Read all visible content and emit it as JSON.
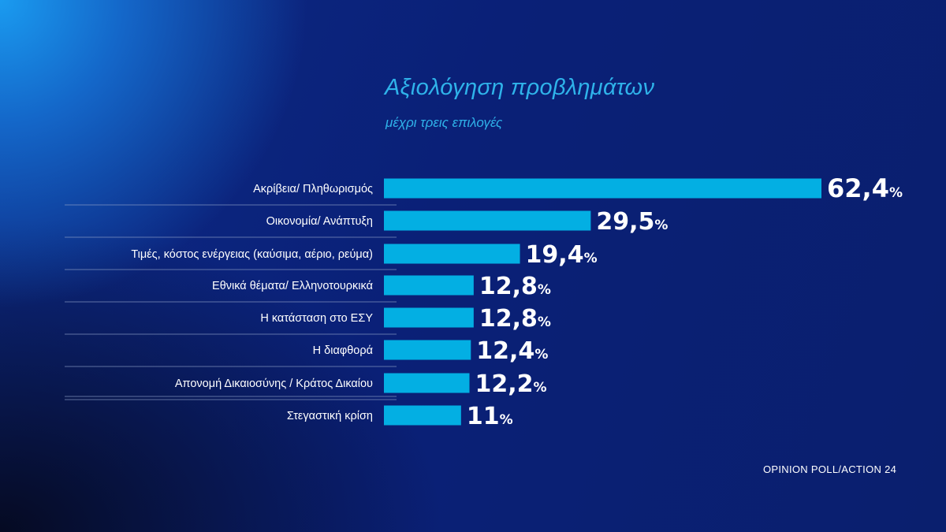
{
  "header": {
    "title": "Αξιολόγηση προβλημάτων",
    "subtitle": "μέχρι τρεις επιλογές"
  },
  "source": "OPINION POLL/ACTION 24",
  "colors": {
    "bar": "#03afe3",
    "title": "#2fb3ea",
    "divider": "#8fa0c8"
  },
  "chart_data": {
    "type": "bar",
    "orientation": "horizontal",
    "categories": [
      "Ακρίβεια/ Πληθωρισμός",
      "Οικονομία/ Ανάπτυξη",
      "Τιμές, κόστος ενέργειας (καύσιμα, αέριο, ρεύμα)",
      "Εθνικά θέματα/ Ελληνοτουρκικά",
      "Η κατάσταση στο ΕΣΥ",
      "Η διαφθορά",
      "Απονομή Δικαιοσύνης / Κράτος Δικαίου",
      "Στεγαστική κρίση"
    ],
    "values": [
      62.4,
      29.5,
      19.4,
      12.8,
      12.8,
      12.4,
      12.2,
      11
    ],
    "value_labels": [
      "62,4",
      "29,5",
      "19,4",
      "12,8",
      "12,8",
      "12,4",
      "12,2",
      "11"
    ],
    "unit": "%",
    "xlim": [
      0,
      62.4
    ],
    "grid": false,
    "legend": "none"
  }
}
